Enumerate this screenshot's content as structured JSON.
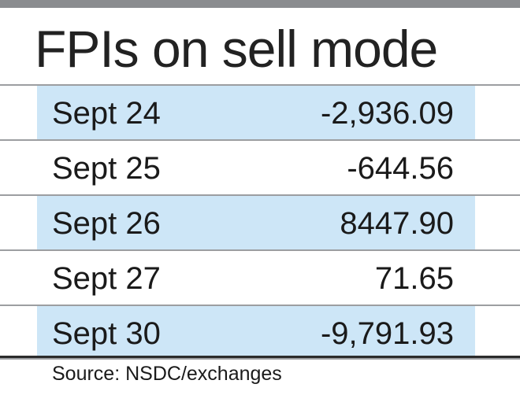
{
  "title": "FPIs on sell mode",
  "source": "Source: NSDC/exchanges",
  "colors": {
    "band": "#cde6f7",
    "rule": "#8a8c8f",
    "text": "#1a1a1a"
  },
  "chart_data": {
    "type": "table",
    "title": "FPIs on sell mode",
    "columns": [
      "",
      ""
    ],
    "rows": [
      {
        "date": "Sept 24",
        "value": "-2,936.09",
        "shaded": true
      },
      {
        "date": "Sept 25",
        "value": "-644.56",
        "shaded": false
      },
      {
        "date": "Sept 26",
        "value": "8447.90",
        "shaded": true
      },
      {
        "date": "Sept 27",
        "value": "71.65",
        "shaded": false
      },
      {
        "date": "Sept 30",
        "value": "-9,791.93",
        "shaded": true
      }
    ]
  }
}
